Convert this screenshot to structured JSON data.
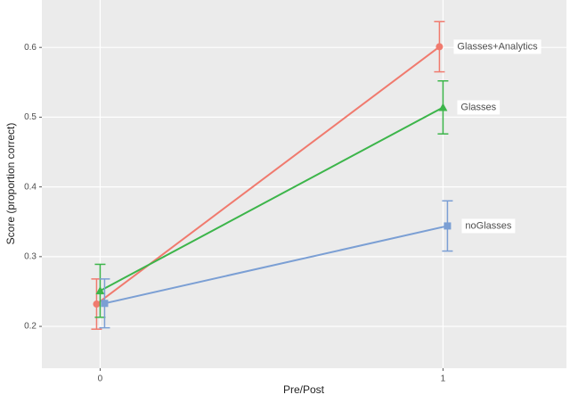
{
  "chart_data": {
    "type": "line",
    "x_label": "Pre/Post",
    "y_label": "Score (proportion correct)",
    "x": [
      0,
      1
    ],
    "series": [
      {
        "name": "Glasses+Analytics",
        "color": "#f07a6e",
        "shape": "circle",
        "values": [
          0.232,
          0.601
        ],
        "errors": [
          0.036,
          0.036
        ]
      },
      {
        "name": "Glasses",
        "color": "#3cb54a",
        "shape": "triangle",
        "values": [
          0.251,
          0.514
        ],
        "errors": [
          0.038,
          0.038
        ]
      },
      {
        "name": "noGlasses",
        "color": "#7b9fd4",
        "shape": "square",
        "values": [
          0.233,
          0.344
        ],
        "errors": [
          0.035,
          0.036
        ]
      }
    ],
    "xlim": [
      -0.17,
      1.36
    ],
    "xticks": [
      0,
      1
    ],
    "ylim": [
      0.14,
      0.668
    ],
    "yticks": [
      0.2,
      0.3,
      0.4,
      0.5,
      0.6
    ],
    "grid": true
  }
}
